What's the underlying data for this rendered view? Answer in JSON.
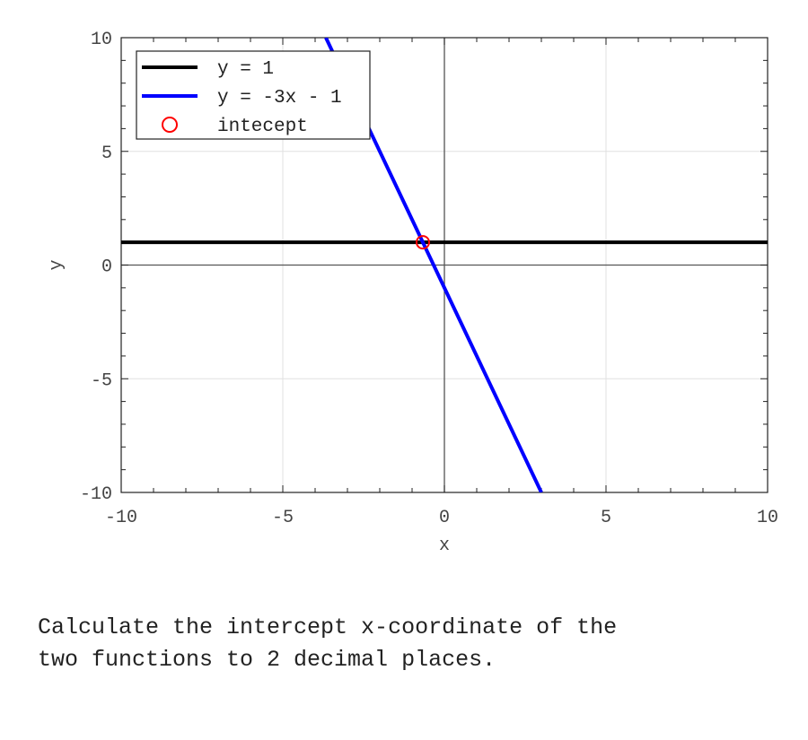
{
  "chart_data": {
    "type": "line",
    "title": "",
    "xlabel": "x",
    "ylabel": "y",
    "xlim": [
      -10,
      10
    ],
    "ylim": [
      -10,
      10
    ],
    "xticks": [
      -10,
      -5,
      0,
      5,
      10
    ],
    "yticks": [
      -10,
      -5,
      0,
      5,
      10
    ],
    "xtick_labels": [
      "-10",
      "-5",
      "0",
      "5",
      "10"
    ],
    "ytick_labels": [
      "-10",
      "-5",
      "0",
      "5",
      "10"
    ],
    "minor_tick_step": 1,
    "grid": true,
    "legend_position": "top-left",
    "series": [
      {
        "name": "y = 1",
        "type": "line",
        "color": "#000000",
        "x": [
          -10,
          10
        ],
        "y": [
          1,
          1
        ]
      },
      {
        "name": "y = -3x - 1",
        "type": "line",
        "color": "#0000ff",
        "x": [
          -3.667,
          3
        ],
        "y": [
          10,
          -10
        ]
      },
      {
        "name": "intecept",
        "type": "scatter",
        "marker": "circle-open",
        "color": "#ff0000",
        "x": [
          -0.667
        ],
        "y": [
          1
        ]
      }
    ]
  },
  "question": {
    "text": "Calculate the intercept x-coordinate of the\ntwo functions to 2 decimal places."
  }
}
